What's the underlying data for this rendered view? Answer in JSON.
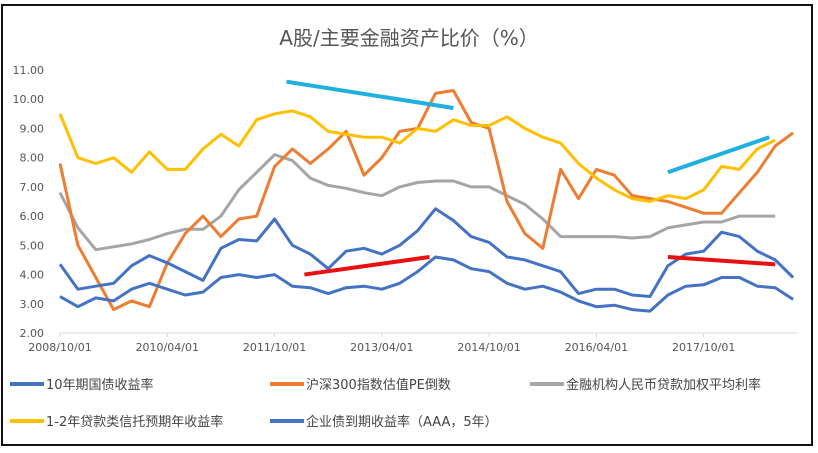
{
  "chart_data": {
    "type": "line",
    "title": "A股/主要金融资产比价（%）",
    "xlabel": "",
    "ylabel": "",
    "ylim": [
      2,
      11
    ],
    "yticks": [
      "2.00",
      "3.00",
      "4.00",
      "5.00",
      "6.00",
      "7.00",
      "8.00",
      "9.00",
      "10.00",
      "11.00"
    ],
    "xticks": [
      "2008/10/01",
      "2010/04/01",
      "2011/10/01",
      "2013/04/01",
      "2014/10/01",
      "2016/04/01",
      "2017/10/01"
    ],
    "grid": false,
    "legend_position": "bottom",
    "x": [
      "2008/10",
      "2009/01",
      "2009/04",
      "2009/07",
      "2009/10",
      "2010/01",
      "2010/04",
      "2010/07",
      "2010/10",
      "2011/01",
      "2011/04",
      "2011/07",
      "2011/10",
      "2012/01",
      "2012/04",
      "2012/07",
      "2012/10",
      "2013/01",
      "2013/04",
      "2013/07",
      "2013/10",
      "2014/01",
      "2014/04",
      "2014/07",
      "2014/10",
      "2015/01",
      "2015/04",
      "2015/07",
      "2015/10",
      "2016/01",
      "2016/04",
      "2016/07",
      "2016/10",
      "2017/01",
      "2017/04",
      "2017/07",
      "2017/10",
      "2018/01",
      "2018/04",
      "2018/07",
      "2018/10",
      "2019/01"
    ],
    "series": [
      {
        "name": "10年期国债收益率",
        "color": "#4472c4",
        "values": [
          3.25,
          2.9,
          3.2,
          3.1,
          3.5,
          3.7,
          3.5,
          3.3,
          3.4,
          3.9,
          4.0,
          3.9,
          4.0,
          3.6,
          3.55,
          3.35,
          3.55,
          3.6,
          3.5,
          3.7,
          4.1,
          4.6,
          4.5,
          4.2,
          4.1,
          3.7,
          3.5,
          3.6,
          3.4,
          3.1,
          2.9,
          2.95,
          2.8,
          2.75,
          3.3,
          3.6,
          3.65,
          3.9,
          3.9,
          3.6,
          3.55,
          3.15
        ]
      },
      {
        "name": "沪深300指数估值PE倒数",
        "color": "#ed7d31",
        "values": [
          7.8,
          5.0,
          3.9,
          2.8,
          3.1,
          2.9,
          4.4,
          5.4,
          6.0,
          5.3,
          5.9,
          6.0,
          7.7,
          8.3,
          7.8,
          8.3,
          8.9,
          7.4,
          8.0,
          8.9,
          9.0,
          10.2,
          10.3,
          9.2,
          9.0,
          6.5,
          5.4,
          4.9,
          7.6,
          6.6,
          7.6,
          7.4,
          6.7,
          6.6,
          6.5,
          6.3,
          6.1,
          6.1,
          6.8,
          7.5,
          8.4,
          8.85
        ]
      },
      {
        "name": "金融机构人民币贷款加权平均利率",
        "color": "#a5a5a5",
        "values": [
          6.8,
          5.6,
          4.85,
          4.95,
          5.05,
          5.2,
          5.4,
          5.55,
          5.55,
          6.0,
          6.9,
          7.5,
          8.1,
          7.9,
          7.3,
          7.05,
          6.95,
          6.8,
          6.7,
          7.0,
          7.15,
          7.2,
          7.2,
          7.0,
          7.0,
          6.7,
          6.4,
          5.9,
          5.3,
          5.3,
          5.3,
          5.3,
          5.25,
          5.3,
          5.6,
          5.7,
          5.8,
          5.8,
          6.0,
          6.0,
          6.0,
          null
        ]
      },
      {
        "name": "1-2年贷款类信托预期年收益率",
        "color": "#ffc000",
        "values": [
          9.5,
          8.0,
          7.8,
          8.0,
          7.5,
          8.2,
          7.6,
          7.6,
          8.3,
          8.8,
          8.4,
          9.3,
          9.5,
          9.6,
          9.4,
          8.9,
          8.8,
          8.7,
          8.7,
          8.5,
          9.0,
          8.9,
          9.3,
          9.1,
          9.1,
          9.4,
          9.0,
          8.7,
          8.5,
          7.8,
          7.3,
          6.9,
          6.6,
          6.5,
          6.7,
          6.6,
          6.9,
          7.7,
          7.6,
          8.3,
          8.6,
          null
        ]
      },
      {
        "name": "企业债到期收益率（AAA，5年）",
        "color": "#4472c4",
        "values": [
          4.35,
          3.5,
          3.6,
          3.7,
          4.3,
          4.65,
          4.4,
          4.1,
          3.8,
          4.9,
          5.2,
          5.15,
          5.9,
          5.0,
          4.7,
          4.2,
          4.8,
          4.9,
          4.7,
          5.0,
          5.5,
          6.25,
          5.85,
          5.3,
          5.1,
          4.6,
          4.5,
          4.3,
          4.1,
          3.35,
          3.5,
          3.5,
          3.3,
          3.25,
          4.3,
          4.7,
          4.8,
          5.45,
          5.3,
          4.8,
          4.5,
          3.9
        ]
      }
    ],
    "annotations": [
      {
        "color": "#1fb0e0",
        "from": [
          "2011/12",
          10.6
        ],
        "to": [
          "2014/04",
          9.7
        ]
      },
      {
        "color": "#1fb0e0",
        "from": [
          "2017/04",
          7.5
        ],
        "to": [
          "2018/09",
          8.7
        ]
      },
      {
        "color": "#e81010",
        "from": [
          "2012/03",
          4.0
        ],
        "to": [
          "2013/12",
          4.6
        ]
      },
      {
        "color": "#e81010",
        "from": [
          "2017/04",
          4.6
        ],
        "to": [
          "2018/10",
          4.35
        ]
      }
    ]
  }
}
